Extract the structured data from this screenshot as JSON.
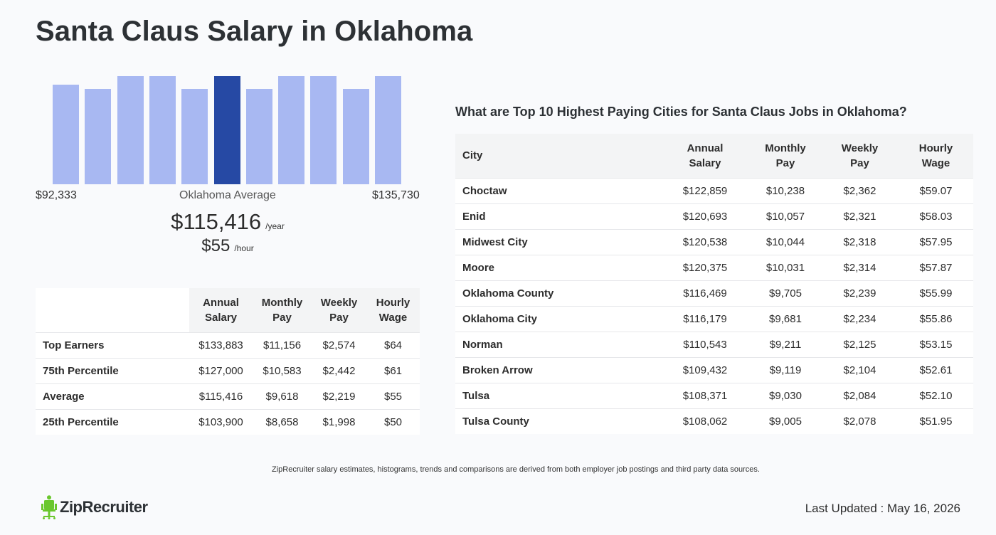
{
  "title": "Santa Claus Salary in Oklahoma",
  "histogram": {
    "bars": [
      0.92,
      0.88,
      1.0,
      1.0,
      0.88,
      1.0,
      0.88,
      1.0,
      1.0,
      0.88,
      1.0
    ],
    "active_index": 5,
    "min_label": "$92,333",
    "avg_label": "Oklahoma Average",
    "max_label": "$135,730",
    "bar_color": "#a8b8f2",
    "active_color": "#2649a4"
  },
  "salary": {
    "annual": "$115,416",
    "annual_unit": "/year",
    "hourly": "$55",
    "hourly_unit": "/hour"
  },
  "percentile_table": {
    "headers": [
      "Annual Salary",
      "Monthly Pay",
      "Weekly Pay",
      "Hourly Wage"
    ],
    "rows": [
      {
        "label": "Top Earners",
        "annual": "$133,883",
        "monthly": "$11,156",
        "weekly": "$2,574",
        "hourly": "$64"
      },
      {
        "label": "75th Percentile",
        "annual": "$127,000",
        "monthly": "$10,583",
        "weekly": "$2,442",
        "hourly": "$61"
      },
      {
        "label": "Average",
        "annual": "$115,416",
        "monthly": "$9,618",
        "weekly": "$2,219",
        "hourly": "$55"
      },
      {
        "label": "25th Percentile",
        "annual": "$103,900",
        "monthly": "$8,658",
        "weekly": "$1,998",
        "hourly": "$50"
      }
    ]
  },
  "cities_section": {
    "title": "What are Top 10 Highest Paying Cities for Santa Claus Jobs in Oklahoma?",
    "headers": [
      "City",
      "Annual Salary",
      "Monthly Pay",
      "Weekly Pay",
      "Hourly Wage"
    ],
    "rows": [
      {
        "city": "Choctaw",
        "annual": "$122,859",
        "monthly": "$10,238",
        "weekly": "$2,362",
        "hourly": "$59.07"
      },
      {
        "city": "Enid",
        "annual": "$120,693",
        "monthly": "$10,057",
        "weekly": "$2,321",
        "hourly": "$58.03"
      },
      {
        "city": "Midwest City",
        "annual": "$120,538",
        "monthly": "$10,044",
        "weekly": "$2,318",
        "hourly": "$57.95"
      },
      {
        "city": "Moore",
        "annual": "$120,375",
        "monthly": "$10,031",
        "weekly": "$2,314",
        "hourly": "$57.87"
      },
      {
        "city": "Oklahoma County",
        "annual": "$116,469",
        "monthly": "$9,705",
        "weekly": "$2,239",
        "hourly": "$55.99"
      },
      {
        "city": "Oklahoma City",
        "annual": "$116,179",
        "monthly": "$9,681",
        "weekly": "$2,234",
        "hourly": "$55.86"
      },
      {
        "city": "Norman",
        "annual": "$110,543",
        "monthly": "$9,211",
        "weekly": "$2,125",
        "hourly": "$53.15"
      },
      {
        "city": "Broken Arrow",
        "annual": "$109,432",
        "monthly": "$9,119",
        "weekly": "$2,104",
        "hourly": "$52.61"
      },
      {
        "city": "Tulsa",
        "annual": "$108,371",
        "monthly": "$9,030",
        "weekly": "$2,084",
        "hourly": "$52.10"
      },
      {
        "city": "Tulsa County",
        "annual": "$108,062",
        "monthly": "$9,005",
        "weekly": "$2,078",
        "hourly": "$51.95"
      }
    ]
  },
  "footnote": "ZipRecruiter salary estimates, histograms, trends and comparisons are derived from both employer job postings and third party data sources.",
  "logo": {
    "text": "ZipRecruiter",
    "icon": "ziprecruiter-chair-icon",
    "icon_color": "#6ac72d"
  },
  "last_updated": "Last Updated : May 16, 2026"
}
